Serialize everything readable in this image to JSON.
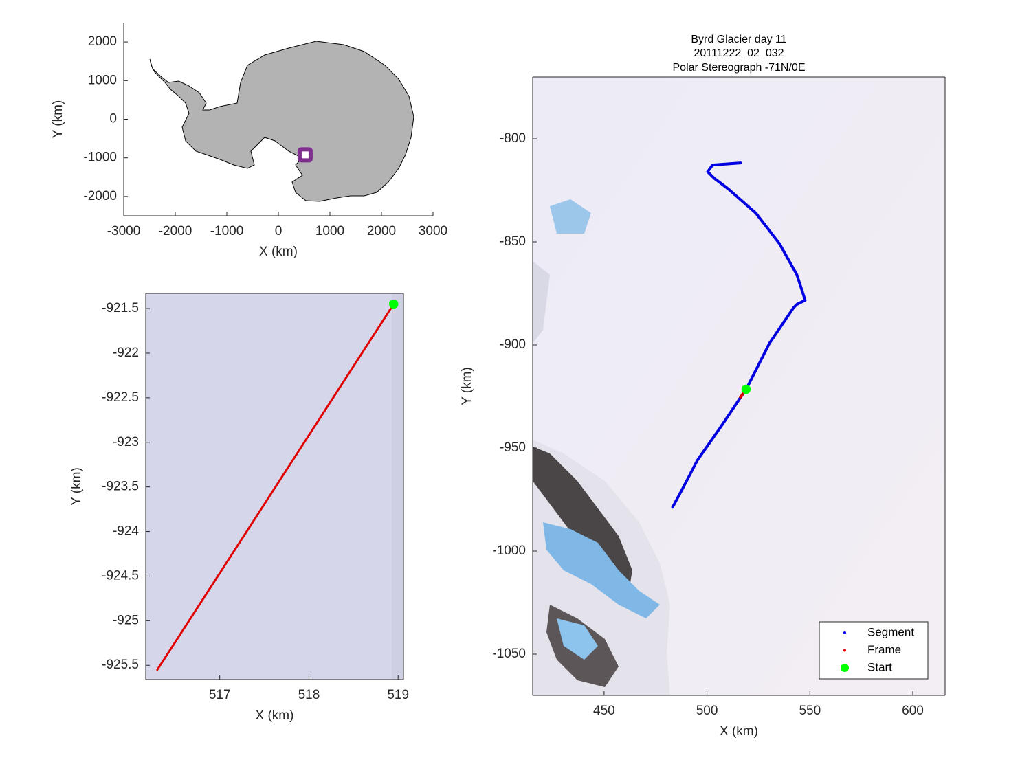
{
  "chart_data": [
    {
      "type": "map",
      "xlabel": "X (km)",
      "ylabel": "Y (km)",
      "xlim": [
        -3000,
        3000
      ],
      "ylim": [
        -2500,
        2500
      ],
      "xticks": [
        -3000,
        -2000,
        -1000,
        0,
        1000,
        2000,
        3000
      ],
      "yticks": [
        -2000,
        -1000,
        0,
        1000,
        2000
      ],
      "box": false,
      "points": [
        {
          "x": 519,
          "y": -923,
          "color": "#7e2f8e"
        }
      ]
    },
    {
      "type": "line",
      "xlabel": "X (km)",
      "ylabel": "Y (km)",
      "xlim": [
        516.17,
        519.06
      ],
      "ylim": [
        -925.66,
        -921.33
      ],
      "xticks": [
        517,
        518,
        519
      ],
      "yticks": [
        -925.5,
        -925,
        -924.5,
        -924,
        -923.5,
        -923,
        -922.5,
        -922,
        -921.5
      ],
      "box": true,
      "series": [
        {
          "color": "#e00000",
          "mode": "line",
          "x": [
            516.3,
            518.95
          ],
          "y": [
            -925.55,
            -921.45
          ]
        },
        {
          "color": "#00ff00",
          "mode": "marker",
          "x": [
            518.95
          ],
          "y": [
            -921.45
          ]
        }
      ]
    },
    {
      "type": "line",
      "title": [
        "Byrd Glacier day 11",
        "20111222_02_032",
        "Polar Stereograph -71N/0E"
      ],
      "xlabel": "X (km)",
      "ylabel": "Y (km)",
      "xlim": [
        415.3,
        615.7
      ],
      "ylim": [
        -1070,
        -770
      ],
      "xticks": [
        450,
        500,
        550,
        600
      ],
      "yticks": [
        -1050,
        -1000,
        -950,
        -900,
        -850,
        -800
      ],
      "box": true,
      "legend": "lower right",
      "series": [
        {
          "name": "Segment",
          "color": "#0000e0",
          "mode": "line",
          "x": [
            516.3,
            502.7,
            500.3,
            503.7,
            510.3,
            523.7,
            535.3,
            543.7,
            547.7,
            543.7,
            542,
            530.3,
            519.3,
            507,
            495.3,
            488,
            483.3
          ],
          "y": [
            -811.7,
            -812.7,
            -816,
            -819.3,
            -824.3,
            -836,
            -851,
            -866,
            -878.3,
            -880.3,
            -882,
            -899.3,
            -921,
            -939.3,
            -956,
            -970,
            -978.7
          ]
        },
        {
          "name": "Frame",
          "color": "#e00000",
          "mode": "line",
          "x": [
            519.3,
            516.3
          ],
          "y": [
            -921,
            -925.3
          ]
        },
        {
          "name": "Start",
          "color": "#00ff00",
          "mode": "marker",
          "x": [
            519
          ],
          "y": [
            -921.5
          ]
        }
      ]
    }
  ]
}
